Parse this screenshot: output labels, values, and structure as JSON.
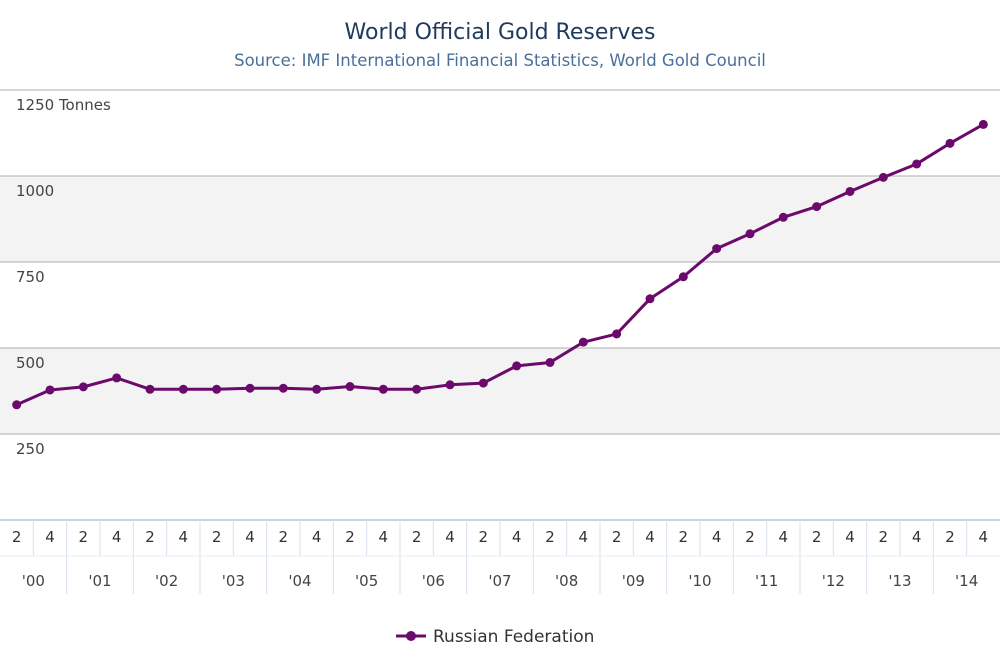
{
  "chart_data": {
    "type": "line",
    "title": "World Official Gold Reserves",
    "subtitle": "Source: IMF International Financial Statistics, World Gold Council",
    "y_unit_label": "1250 Tonnes",
    "ylim": [
      0,
      1250
    ],
    "y_ticks": [
      {
        "value": 250,
        "label": "250"
      },
      {
        "value": 500,
        "label": "500"
      },
      {
        "value": 750,
        "label": "750"
      },
      {
        "value": 1000,
        "label": "1000"
      },
      {
        "value": 1250,
        "label": "1250 Tonnes"
      }
    ],
    "x_quarter_labels": [
      "2",
      "4",
      "2",
      "4",
      "2",
      "4",
      "2",
      "4",
      "2",
      "4",
      "2",
      "4",
      "2",
      "4",
      "2",
      "4",
      "2",
      "4",
      "2",
      "4",
      "2",
      "4",
      "2",
      "4",
      "2",
      "4",
      "2",
      "4",
      "2",
      "4"
    ],
    "x_year_labels": [
      "'00",
      "'01",
      "'02",
      "'03",
      "'04",
      "'05",
      "'06",
      "'07",
      "'08",
      "'09",
      "'10",
      "'11",
      "'12",
      "'13",
      "'14"
    ],
    "series": [
      {
        "name": "Russian Federation",
        "color": "#6b0a6b",
        "values": [
          335,
          378,
          387,
          413,
          380,
          380,
          380,
          383,
          383,
          380,
          388,
          380,
          380,
          393,
          398,
          448,
          458,
          517,
          541,
          643,
          707,
          789,
          832,
          880,
          911,
          955,
          996,
          1035,
          1095,
          1150
        ]
      }
    ],
    "grid": true,
    "legend_position": "bottom-center"
  }
}
